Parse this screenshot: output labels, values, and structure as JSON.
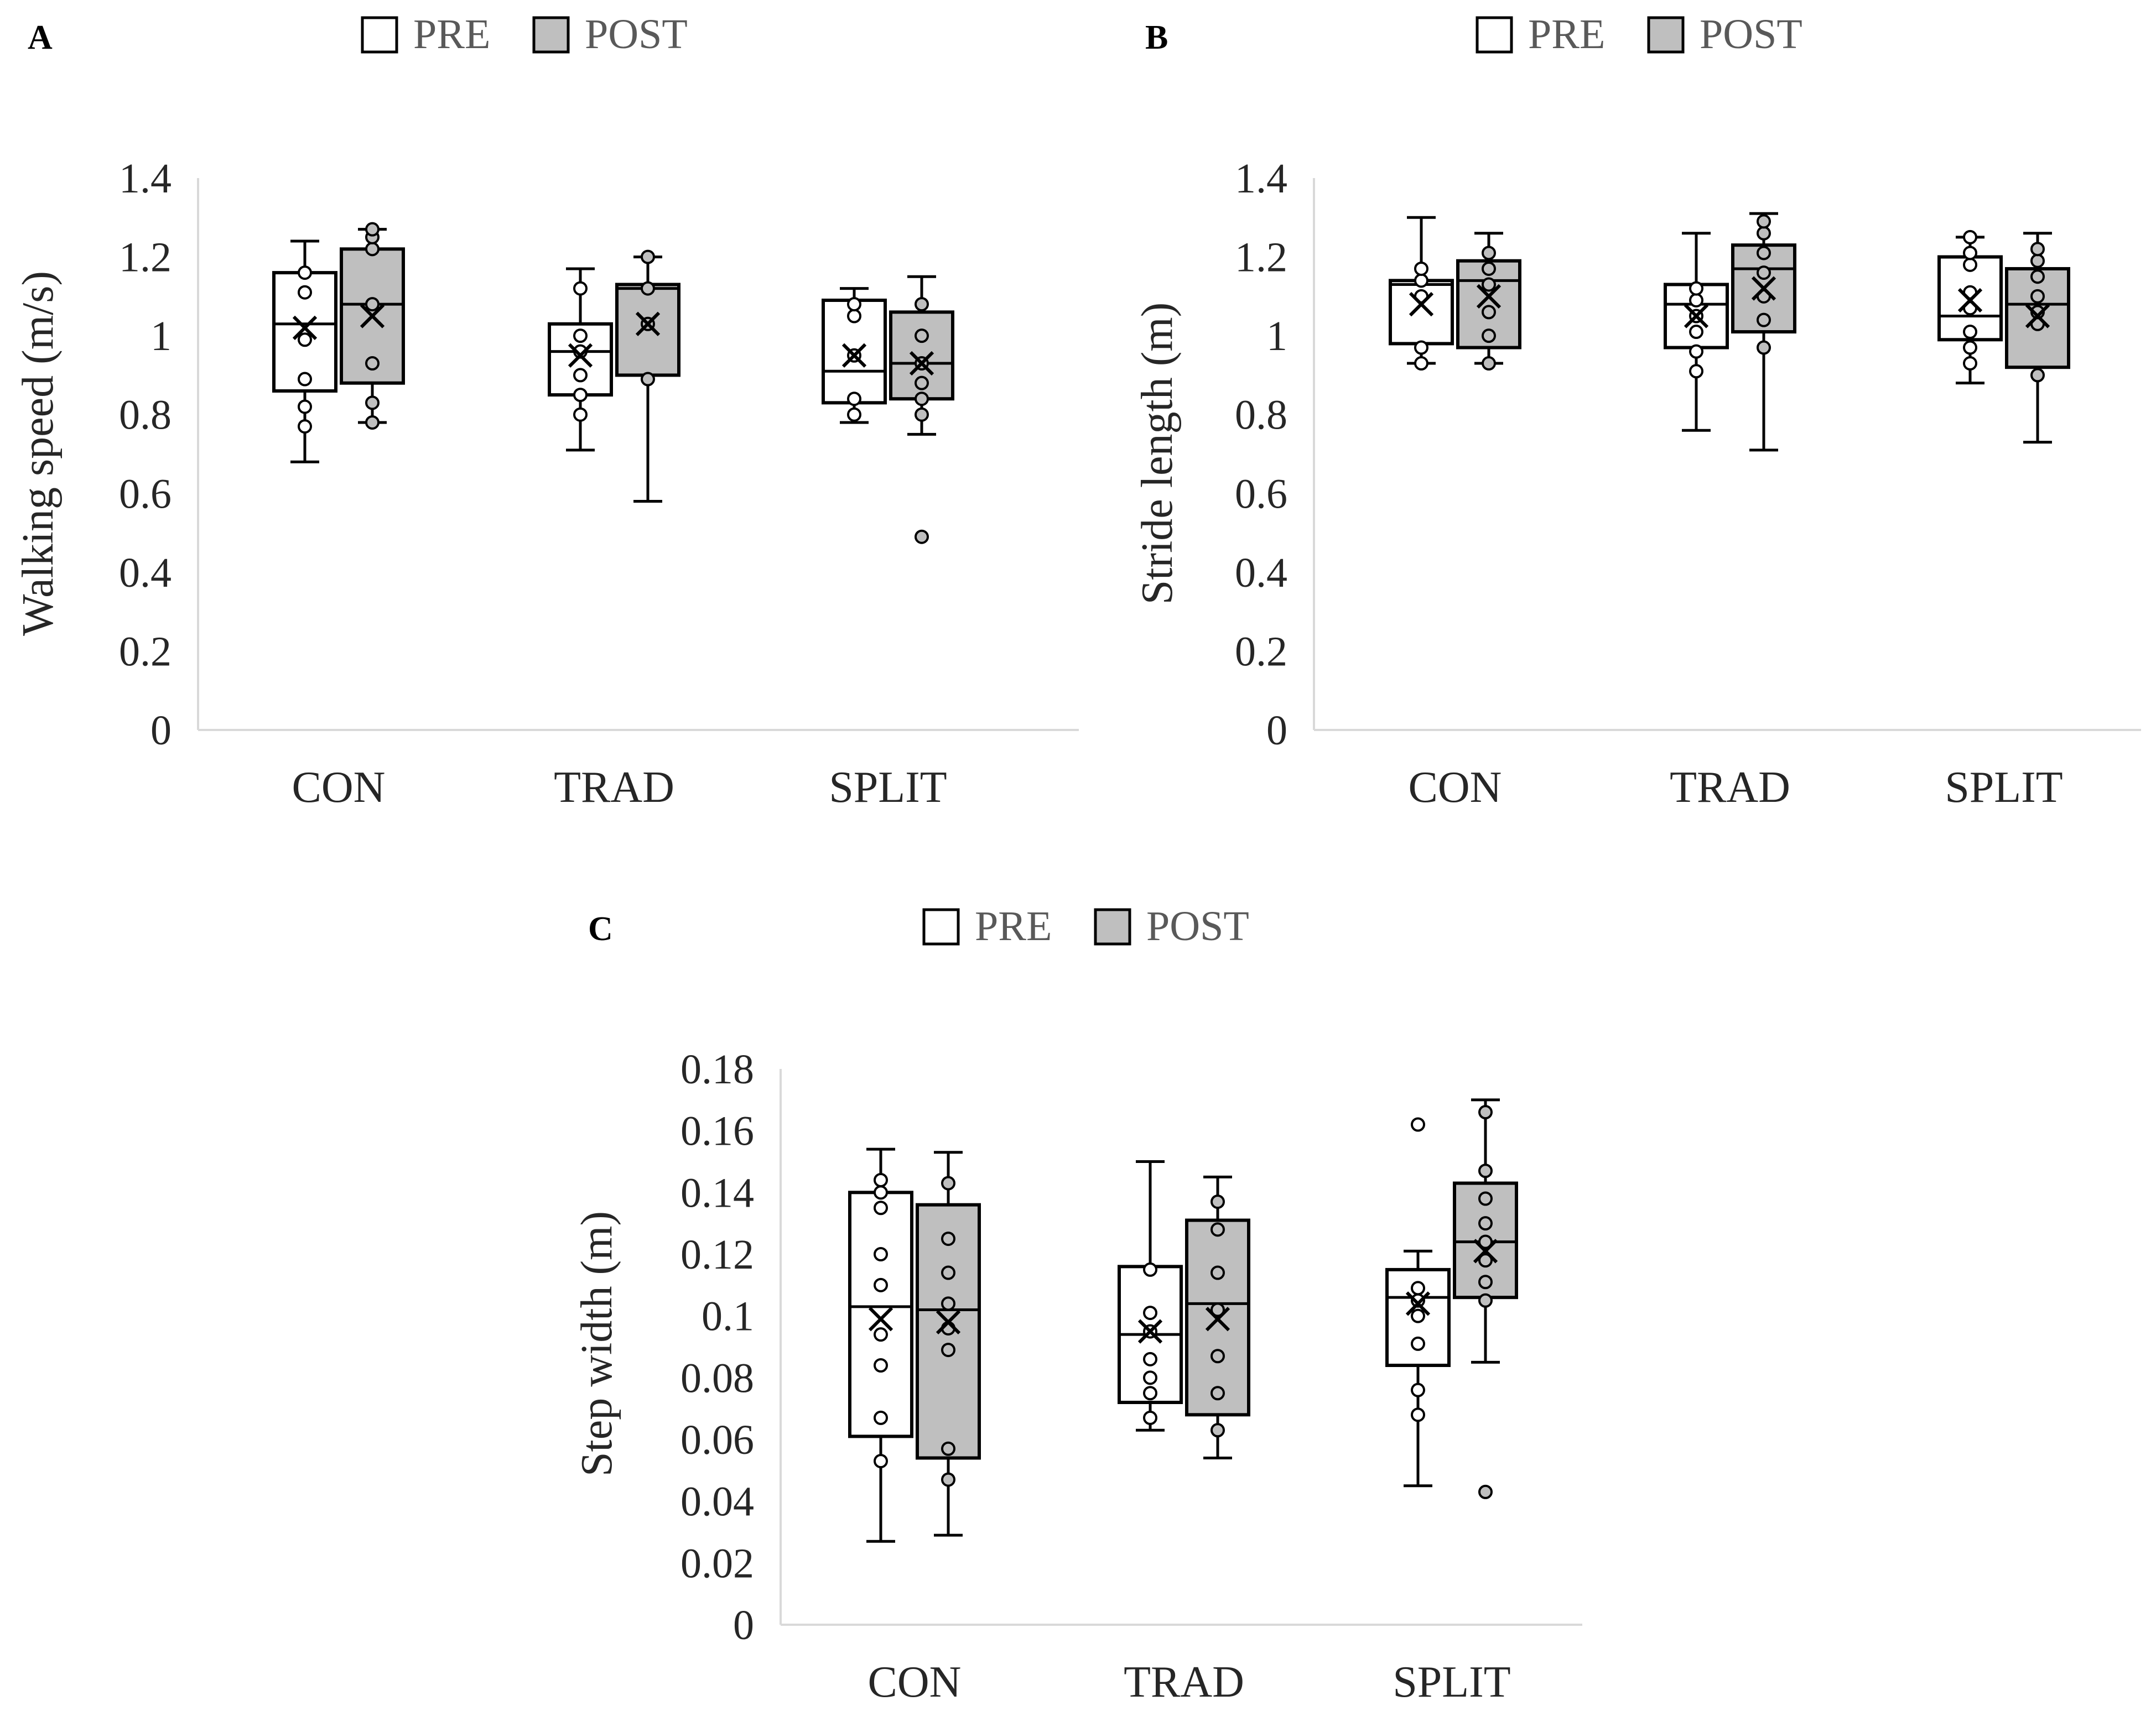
{
  "chart_data": [
    {
      "type": "box",
      "panel": "A",
      "title": "",
      "ylabel": "Walking speed (m/s)",
      "xlabel": "",
      "ylim": [
        0,
        1.4
      ],
      "ytick_step": 0.2,
      "categories": [
        "CON",
        "TRAD",
        "SPLIT"
      ],
      "legend": [
        {
          "name": "PRE",
          "color": "#ffffff"
        },
        {
          "name": "POST",
          "color": "#bfbfbf"
        }
      ],
      "legend_position": "top",
      "groups": [
        {
          "category": "CON",
          "series": "PRE",
          "min": 0.68,
          "q1": 0.86,
          "median": 1.03,
          "q3": 1.16,
          "max": 1.24,
          "mean": 1.02,
          "points": [
            0.77,
            0.82,
            0.89,
            0.99,
            1.11,
            1.16
          ]
        },
        {
          "category": "CON",
          "series": "POST",
          "min": 0.78,
          "q1": 0.88,
          "median": 1.08,
          "q3": 1.22,
          "max": 1.27,
          "mean": 1.05,
          "points": [
            0.78,
            0.83,
            0.93,
            1.08,
            1.22,
            1.25,
            1.27
          ]
        },
        {
          "category": "TRAD",
          "series": "PRE",
          "min": 0.71,
          "q1": 0.85,
          "median": 0.96,
          "q3": 1.03,
          "max": 1.17,
          "mean": 0.95,
          "points": [
            0.8,
            0.85,
            0.9,
            0.96,
            1.0,
            1.12
          ]
        },
        {
          "category": "TRAD",
          "series": "POST",
          "min": 0.58,
          "q1": 0.9,
          "median": 1.12,
          "q3": 1.13,
          "max": 1.2,
          "mean": 1.03,
          "points": [
            0.89,
            1.03,
            1.12,
            1.2
          ]
        },
        {
          "category": "SPLIT",
          "series": "PRE",
          "min": 0.78,
          "q1": 0.83,
          "median": 0.91,
          "q3": 1.09,
          "max": 1.12,
          "mean": 0.95,
          "points": [
            0.8,
            0.84,
            0.95,
            1.05,
            1.08
          ]
        },
        {
          "category": "SPLIT",
          "series": "POST",
          "min": 0.75,
          "q1": 0.84,
          "median": 0.93,
          "q3": 1.06,
          "max": 1.15,
          "mean": 0.93,
          "points": [
            0.49,
            0.8,
            0.84,
            0.88,
            0.93,
            1.0,
            1.08
          ]
        }
      ]
    },
    {
      "type": "box",
      "panel": "B",
      "title": "",
      "ylabel": "Stride length (m)",
      "xlabel": "",
      "ylim": [
        0,
        1.4
      ],
      "ytick_step": 0.2,
      "categories": [
        "CON",
        "TRAD",
        "SPLIT"
      ],
      "legend": [
        {
          "name": "PRE",
          "color": "#ffffff"
        },
        {
          "name": "POST",
          "color": "#bfbfbf"
        }
      ],
      "legend_position": "top",
      "groups": [
        {
          "category": "CON",
          "series": "PRE",
          "min": 0.93,
          "q1": 0.98,
          "median": 1.13,
          "q3": 1.14,
          "max": 1.3,
          "mean": 1.08,
          "points": [
            0.93,
            0.97,
            1.1,
            1.14,
            1.17
          ]
        },
        {
          "category": "CON",
          "series": "POST",
          "min": 0.93,
          "q1": 0.97,
          "median": 1.14,
          "q3": 1.19,
          "max": 1.26,
          "mean": 1.1,
          "points": [
            0.93,
            1.0,
            1.06,
            1.13,
            1.17,
            1.21
          ]
        },
        {
          "category": "TRAD",
          "series": "PRE",
          "min": 0.76,
          "q1": 0.97,
          "median": 1.08,
          "q3": 1.13,
          "max": 1.26,
          "mean": 1.05,
          "points": [
            0.91,
            0.96,
            1.01,
            1.05,
            1.09,
            1.12
          ]
        },
        {
          "category": "TRAD",
          "series": "POST",
          "min": 0.71,
          "q1": 1.01,
          "median": 1.17,
          "q3": 1.23,
          "max": 1.31,
          "mean": 1.12,
          "points": [
            0.97,
            1.04,
            1.1,
            1.16,
            1.21,
            1.26,
            1.29
          ]
        },
        {
          "category": "SPLIT",
          "series": "PRE",
          "min": 0.88,
          "q1": 0.99,
          "median": 1.05,
          "q3": 1.2,
          "max": 1.25,
          "mean": 1.09,
          "points": [
            0.93,
            0.97,
            1.01,
            1.07,
            1.11,
            1.18,
            1.21,
            1.25
          ]
        },
        {
          "category": "SPLIT",
          "series": "POST",
          "min": 0.73,
          "q1": 0.92,
          "median": 1.08,
          "q3": 1.17,
          "max": 1.26,
          "mean": 1.05,
          "points": [
            0.9,
            1.03,
            1.06,
            1.1,
            1.15,
            1.19,
            1.22
          ]
        }
      ]
    },
    {
      "type": "box",
      "panel": "C",
      "title": "",
      "ylabel": "Step width (m)",
      "xlabel": "",
      "ylim": [
        0,
        0.18
      ],
      "ytick_step": 0.02,
      "categories": [
        "CON",
        "TRAD",
        "SPLIT"
      ],
      "legend": [
        {
          "name": "PRE",
          "color": "#ffffff"
        },
        {
          "name": "POST",
          "color": "#bfbfbf"
        }
      ],
      "legend_position": "top",
      "groups": [
        {
          "category": "CON",
          "series": "PRE",
          "min": 0.027,
          "q1": 0.061,
          "median": 0.103,
          "q3": 0.14,
          "max": 0.154,
          "mean": 0.099,
          "points": [
            0.053,
            0.067,
            0.084,
            0.094,
            0.11,
            0.12,
            0.135,
            0.14,
            0.144
          ]
        },
        {
          "category": "CON",
          "series": "POST",
          "min": 0.029,
          "q1": 0.054,
          "median": 0.102,
          "q3": 0.136,
          "max": 0.153,
          "mean": 0.098,
          "points": [
            0.047,
            0.057,
            0.089,
            0.096,
            0.104,
            0.114,
            0.125,
            0.143
          ]
        },
        {
          "category": "TRAD",
          "series": "PRE",
          "min": 0.063,
          "q1": 0.072,
          "median": 0.094,
          "q3": 0.116,
          "max": 0.15,
          "mean": 0.095,
          "points": [
            0.067,
            0.075,
            0.08,
            0.086,
            0.095,
            0.101,
            0.115
          ]
        },
        {
          "category": "TRAD",
          "series": "POST",
          "min": 0.054,
          "q1": 0.068,
          "median": 0.104,
          "q3": 0.131,
          "max": 0.145,
          "mean": 0.099,
          "points": [
            0.063,
            0.075,
            0.087,
            0.102,
            0.114,
            0.128,
            0.137
          ]
        },
        {
          "category": "SPLIT",
          "series": "PRE",
          "min": 0.045,
          "q1": 0.084,
          "median": 0.106,
          "q3": 0.115,
          "max": 0.121,
          "mean": 0.104,
          "points": [
            0.068,
            0.076,
            0.091,
            0.1,
            0.105,
            0.109,
            0.162
          ]
        },
        {
          "category": "SPLIT",
          "series": "POST",
          "min": 0.085,
          "q1": 0.106,
          "median": 0.124,
          "q3": 0.143,
          "max": 0.17,
          "mean": 0.121,
          "points": [
            0.043,
            0.105,
            0.111,
            0.118,
            0.124,
            0.13,
            0.138,
            0.147,
            0.166
          ]
        }
      ]
    }
  ]
}
